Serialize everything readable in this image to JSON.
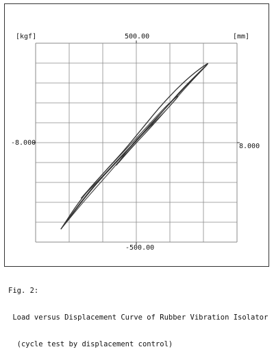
{
  "chart_data": {
    "type": "line",
    "title": "",
    "ylabel_unit": "[kgf]",
    "xlabel_unit": "[mm]",
    "ylim": [
      -500.0,
      500.0
    ],
    "xlim": [
      -8.0,
      8.0
    ],
    "tick_labels": {
      "y_max": "500.00",
      "y_min": "-500.00",
      "x_min": "-8.000",
      "x_max": "8.000"
    },
    "grid": true,
    "series": [
      {
        "points": [
          [
            -6.0,
            -435
          ],
          [
            -3.5,
            -228
          ],
          [
            -1.2,
            -72
          ],
          [
            0.5,
            42
          ],
          [
            2.0,
            150
          ],
          [
            3.5,
            260
          ],
          [
            5.0,
            355
          ],
          [
            6.0,
            415
          ],
          [
            4.2,
            332
          ],
          [
            2.2,
            205
          ],
          [
            0.6,
            82
          ],
          [
            -1.0,
            -42
          ],
          [
            -2.6,
            -152
          ],
          [
            -4.4,
            -282
          ],
          [
            -6.0,
            -435
          ]
        ]
      },
      {
        "points": [
          [
            -6.0,
            -435
          ],
          [
            -4.1,
            -290
          ],
          [
            -2.3,
            -162
          ],
          [
            -0.7,
            -45
          ],
          [
            0.8,
            52
          ],
          [
            2.4,
            165
          ],
          [
            4.2,
            298
          ],
          [
            6.0,
            415
          ],
          [
            4.5,
            322
          ],
          [
            2.7,
            198
          ],
          [
            1.1,
            92
          ],
          [
            -0.4,
            -18
          ],
          [
            -2.0,
            -122
          ],
          [
            -4.0,
            -262
          ],
          [
            -6.0,
            -435
          ]
        ]
      },
      {
        "points": [
          [
            -4.4,
            -280
          ],
          [
            -3.0,
            -190
          ],
          [
            -1.6,
            -95
          ],
          [
            -0.3,
            -8
          ],
          [
            1.0,
            75
          ],
          [
            2.4,
            165
          ],
          [
            3.6,
            250
          ],
          [
            2.6,
            200
          ],
          [
            1.3,
            112
          ],
          [
            0.0,
            22
          ],
          [
            -1.4,
            -72
          ],
          [
            -2.9,
            -172
          ],
          [
            -4.4,
            -280
          ]
        ]
      },
      {
        "points": [
          [
            -1.6,
            -115
          ],
          [
            -0.5,
            -35
          ],
          [
            0.6,
            40
          ],
          [
            1.6,
            110
          ],
          [
            0.6,
            55
          ],
          [
            -0.5,
            -20
          ],
          [
            -1.6,
            -115
          ]
        ]
      }
    ]
  },
  "caption": {
    "line1": "Fig. 2:",
    "line2": " Load versus Displacement Curve of Rubber Vibration Isolator",
    "line3": "  (cycle test by displacement control)"
  },
  "colors": {
    "grid": "#8a8a8a",
    "curve": "#333333"
  }
}
